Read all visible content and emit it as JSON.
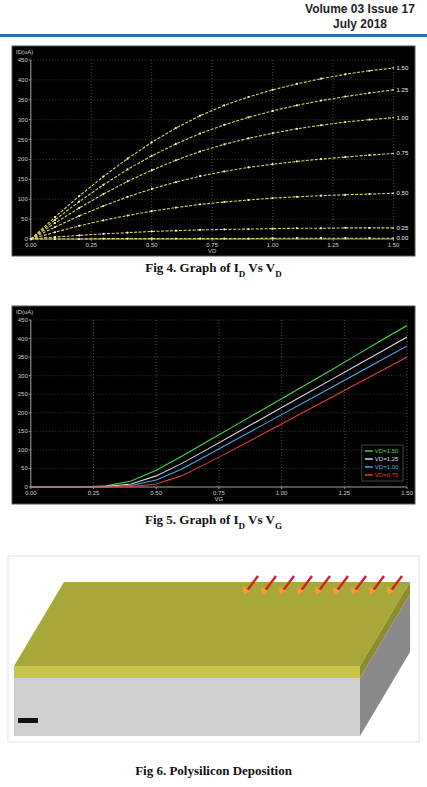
{
  "header": {
    "volume": "Volume 03 Issue 17",
    "date": "July 2018"
  },
  "chart_data": [
    {
      "type": "line",
      "caption": "Fig 4. Graph of ID Vs VD",
      "x_label": "VD",
      "y_label": "ID(uA)",
      "x": [
        0,
        0.1,
        0.2,
        0.3,
        0.4,
        0.5,
        0.6,
        0.7,
        0.8,
        0.9,
        1.0,
        1.1,
        1.2,
        1.3,
        1.4,
        1.5
      ],
      "xlim": [
        0,
        1.5
      ],
      "xticks": [
        {
          "value": 0,
          "label": "0.00"
        },
        {
          "value": 0.25,
          "label": "0.25"
        },
        {
          "value": 0.5,
          "label": "0.50"
        },
        {
          "value": 0.75,
          "label": "0.75"
        },
        {
          "value": 1,
          "label": "1.00"
        },
        {
          "value": 1.25,
          "label": "1.25"
        },
        {
          "value": 1.5,
          "label": "1.50"
        }
      ],
      "ylim": [
        0,
        450
      ],
      "yticks": [
        0,
        50,
        100,
        150,
        200,
        250,
        300,
        350,
        400,
        450
      ],
      "grid": true,
      "marker": "circle",
      "line_style": "dashed",
      "series": [
        {
          "name": "1.50",
          "color": "#d9d45b",
          "values": [
            0,
            55,
            108,
            157,
            202,
            243,
            279,
            310,
            336,
            357,
            375,
            390,
            403,
            414,
            423,
            430
          ]
        },
        {
          "name": "1.25",
          "color": "#d9d45b",
          "values": [
            0,
            48,
            94,
            136,
            175,
            209,
            239,
            265,
            287,
            306,
            322,
            336,
            348,
            358,
            367,
            375
          ]
        },
        {
          "name": "1.00",
          "color": "#d9d45b",
          "values": [
            0,
            40,
            78,
            113,
            145,
            173,
            198,
            220,
            238,
            253,
            266,
            277,
            286,
            294,
            300,
            305
          ]
        },
        {
          "name": "0.75",
          "color": "#d9d45b",
          "values": [
            0,
            30,
            58,
            83,
            106,
            126,
            143,
            158,
            170,
            180,
            188,
            195,
            201,
            206,
            211,
            215
          ]
        },
        {
          "name": "0.50",
          "color": "#d9d45b",
          "values": [
            0,
            17,
            33,
            47,
            59,
            70,
            79,
            87,
            93,
            98,
            103,
            106,
            109,
            111,
            113,
            115
          ]
        },
        {
          "name": "0.25",
          "color": "#d9d45b",
          "values": [
            0,
            5,
            9,
            13,
            16,
            19,
            21,
            23,
            24,
            25,
            26,
            27,
            27,
            28,
            28,
            28
          ]
        },
        {
          "name": "0.00",
          "color": "#d9d45b",
          "values": [
            0,
            0,
            0,
            1,
            1,
            1,
            1,
            1,
            1,
            1,
            2,
            2,
            2,
            2,
            2,
            2
          ]
        }
      ]
    },
    {
      "type": "line",
      "caption": "Fig 5. Graph of ID Vs VG",
      "x_label": "VG",
      "y_label": "ID(uA)",
      "x": [
        0,
        0.1,
        0.2,
        0.3,
        0.4,
        0.5,
        0.6,
        0.7,
        0.8,
        0.9,
        1.0,
        1.1,
        1.2,
        1.3,
        1.4,
        1.5
      ],
      "xlim": [
        0,
        1.5
      ],
      "xticks": [
        {
          "value": 0,
          "label": "0.00"
        },
        {
          "value": 0.25,
          "label": "0.25"
        },
        {
          "value": 0.5,
          "label": "0.50"
        },
        {
          "value": 0.75,
          "label": "0.75"
        },
        {
          "value": 1,
          "label": "1.00"
        },
        {
          "value": 1.25,
          "label": "1.25"
        },
        {
          "value": 1.5,
          "label": "1.50"
        }
      ],
      "ylim": [
        0,
        450
      ],
      "yticks": [
        0,
        50,
        100,
        150,
        200,
        250,
        300,
        350,
        400,
        450
      ],
      "grid": true,
      "legend": "lower right",
      "series": [
        {
          "name": "VD=1.50",
          "color": "#3ddc3d",
          "values": [
            0,
            0,
            0,
            3,
            16,
            45,
            82,
            121,
            160,
            199,
            238,
            277,
            316,
            356,
            396,
            435
          ]
        },
        {
          "name": "VD=1.25",
          "color": "#d8d8e8",
          "values": [
            0,
            0,
            0,
            1,
            8,
            30,
            63,
            100,
            138,
            176,
            214,
            252,
            290,
            328,
            366,
            404
          ]
        },
        {
          "name": "VD=1.00",
          "color": "#4aa8e8",
          "values": [
            0,
            0,
            0,
            0,
            4,
            19,
            48,
            84,
            121,
            158,
            195,
            232,
            269,
            306,
            343,
            380
          ]
        },
        {
          "name": "VD=0.75",
          "color": "#e03a3a",
          "values": [
            0,
            0,
            0,
            0,
            1,
            8,
            30,
            63,
            98,
            134,
            170,
            206,
            242,
            278,
            314,
            350
          ]
        }
      ]
    }
  ],
  "diagram": {
    "caption": "Fig 6. Polysilicon Deposition"
  }
}
